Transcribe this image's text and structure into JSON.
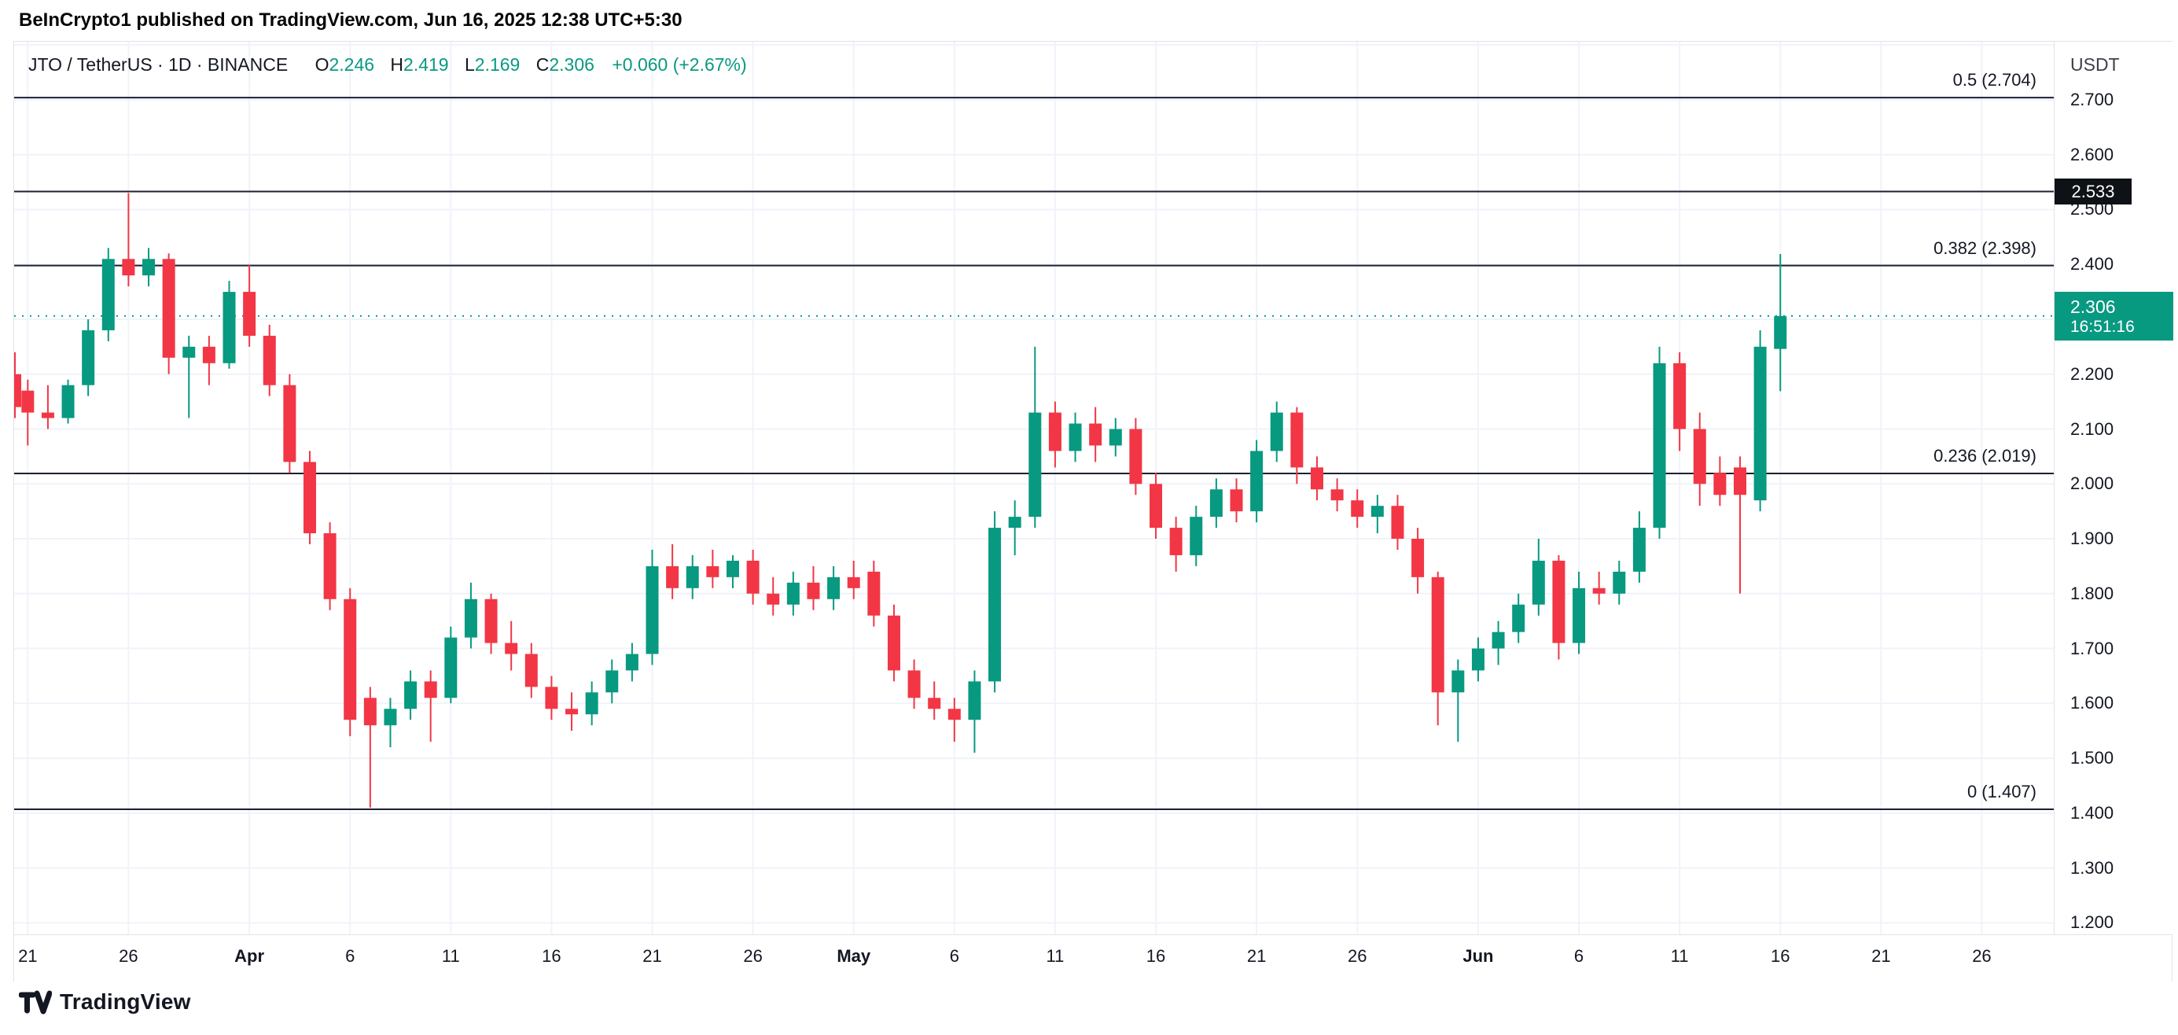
{
  "attribution": "BeInCrypto1 published on TradingView.com, Jun 16, 2025 12:38 UTC+5:30",
  "legend": {
    "title": "JTO / TetherUS · 1D · BINANCE",
    "o_label": "O",
    "o_value": "2.246",
    "h_label": "H",
    "h_value": "2.419",
    "l_label": "L",
    "l_value": "2.169",
    "c_label": "C",
    "c_value": "2.306",
    "change": "+0.060 (+2.67%)"
  },
  "price_axis": {
    "currency_label": "USDT",
    "ticks": [
      {
        "label": "2.700",
        "price": 2.7
      },
      {
        "label": "2.600",
        "price": 2.6
      },
      {
        "label": "2.500",
        "price": 2.5
      },
      {
        "label": "2.400",
        "price": 2.4
      },
      {
        "label": "2.200",
        "price": 2.2
      },
      {
        "label": "2.100",
        "price": 2.1
      },
      {
        "label": "2.000",
        "price": 2.0
      },
      {
        "label": "1.900",
        "price": 1.9
      },
      {
        "label": "1.800",
        "price": 1.8
      },
      {
        "label": "1.700",
        "price": 1.7
      },
      {
        "label": "1.600",
        "price": 1.6
      },
      {
        "label": "1.500",
        "price": 1.5
      },
      {
        "label": "1.400",
        "price": 1.4
      },
      {
        "label": "1.300",
        "price": 1.3
      },
      {
        "label": "1.200",
        "price": 1.2
      }
    ],
    "crossed_tag": {
      "text": "2.533",
      "price": 2.533
    },
    "current_tag": {
      "price_text": "2.306",
      "countdown": "16:51:16",
      "price": 2.306
    }
  },
  "time_axis": {
    "ticks": [
      {
        "label": "21",
        "i": 0,
        "bold": false
      },
      {
        "label": "26",
        "i": 5,
        "bold": false
      },
      {
        "label": "Apr",
        "i": 11,
        "bold": true
      },
      {
        "label": "6",
        "i": 16,
        "bold": false
      },
      {
        "label": "11",
        "i": 21,
        "bold": false
      },
      {
        "label": "16",
        "i": 26,
        "bold": false
      },
      {
        "label": "21",
        "i": 31,
        "bold": false
      },
      {
        "label": "26",
        "i": 36,
        "bold": false
      },
      {
        "label": "May",
        "i": 41,
        "bold": true
      },
      {
        "label": "6",
        "i": 46,
        "bold": false
      },
      {
        "label": "11",
        "i": 51,
        "bold": false
      },
      {
        "label": "16",
        "i": 56,
        "bold": false
      },
      {
        "label": "21",
        "i": 61,
        "bold": false
      },
      {
        "label": "26",
        "i": 66,
        "bold": false
      },
      {
        "label": "Jun",
        "i": 72,
        "bold": true
      },
      {
        "label": "6",
        "i": 77,
        "bold": false
      },
      {
        "label": "11",
        "i": 82,
        "bold": false
      },
      {
        "label": "16",
        "i": 87,
        "bold": false
      },
      {
        "label": "21",
        "i": 92,
        "bold": false
      },
      {
        "label": "26",
        "i": 97,
        "bold": false
      }
    ]
  },
  "fib_levels": [
    {
      "label": "0.5 (2.704)",
      "price": 2.704
    },
    {
      "label": "0.382 (2.398)",
      "price": 2.398
    },
    {
      "label": "0.236 (2.019)",
      "price": 2.019
    },
    {
      "label": "0 (1.407)",
      "price": 1.407
    }
  ],
  "footer": {
    "brand": "TradingView"
  },
  "colors": {
    "up": "#089981",
    "down": "#f23645",
    "grid": "#f0f3fa",
    "fib_line": "#1c2030",
    "axis_text": "#131722"
  },
  "chart_data": {
    "type": "candlestick",
    "symbol": "JTO/USDT",
    "exchange": "BINANCE",
    "interval": "1D",
    "title": "JTO / TetherUS · 1D · BINANCE",
    "y_range": [
      1.179,
      2.806
    ],
    "grid": true,
    "candles": [
      {
        "t": "Mar 20",
        "o": 2.2,
        "h": 2.24,
        "l": 2.12,
        "c": 2.14
      },
      {
        "t": "Mar 21",
        "o": 2.17,
        "h": 2.19,
        "l": 2.07,
        "c": 2.13
      },
      {
        "t": "Mar 22",
        "o": 2.13,
        "h": 2.18,
        "l": 2.1,
        "c": 2.12
      },
      {
        "t": "Mar 23",
        "o": 2.12,
        "h": 2.19,
        "l": 2.11,
        "c": 2.18
      },
      {
        "t": "Mar 24",
        "o": 2.18,
        "h": 2.3,
        "l": 2.16,
        "c": 2.28
      },
      {
        "t": "Mar 25",
        "o": 2.28,
        "h": 2.43,
        "l": 2.26,
        "c": 2.41
      },
      {
        "t": "Mar 26",
        "o": 2.41,
        "h": 2.53,
        "l": 2.36,
        "c": 2.38
      },
      {
        "t": "Mar 27",
        "o": 2.38,
        "h": 2.43,
        "l": 2.36,
        "c": 2.41
      },
      {
        "t": "Mar 28",
        "o": 2.41,
        "h": 2.42,
        "l": 2.2,
        "c": 2.23
      },
      {
        "t": "Mar 29",
        "o": 2.23,
        "h": 2.27,
        "l": 2.12,
        "c": 2.25
      },
      {
        "t": "Mar 30",
        "o": 2.25,
        "h": 2.27,
        "l": 2.18,
        "c": 2.22
      },
      {
        "t": "Mar 31",
        "o": 2.22,
        "h": 2.37,
        "l": 2.21,
        "c": 2.35
      },
      {
        "t": "Apr 1",
        "o": 2.35,
        "h": 2.4,
        "l": 2.25,
        "c": 2.27
      },
      {
        "t": "Apr 2",
        "o": 2.27,
        "h": 2.29,
        "l": 2.16,
        "c": 2.18
      },
      {
        "t": "Apr 3",
        "o": 2.18,
        "h": 2.2,
        "l": 2.02,
        "c": 2.04
      },
      {
        "t": "Apr 4",
        "o": 2.04,
        "h": 2.06,
        "l": 1.89,
        "c": 1.91
      },
      {
        "t": "Apr 5",
        "o": 1.91,
        "h": 1.93,
        "l": 1.77,
        "c": 1.79
      },
      {
        "t": "Apr 6",
        "o": 1.79,
        "h": 1.81,
        "l": 1.54,
        "c": 1.57
      },
      {
        "t": "Apr 7",
        "o": 1.61,
        "h": 1.63,
        "l": 1.41,
        "c": 1.56
      },
      {
        "t": "Apr 8",
        "o": 1.56,
        "h": 1.61,
        "l": 1.52,
        "c": 1.59
      },
      {
        "t": "Apr 9",
        "o": 1.59,
        "h": 1.66,
        "l": 1.57,
        "c": 1.64
      },
      {
        "t": "Apr 10",
        "o": 1.64,
        "h": 1.66,
        "l": 1.53,
        "c": 1.61
      },
      {
        "t": "Apr 11",
        "o": 1.61,
        "h": 1.74,
        "l": 1.6,
        "c": 1.72
      },
      {
        "t": "Apr 12",
        "o": 1.72,
        "h": 1.82,
        "l": 1.7,
        "c": 1.79
      },
      {
        "t": "Apr 13",
        "o": 1.79,
        "h": 1.8,
        "l": 1.69,
        "c": 1.71
      },
      {
        "t": "Apr 14",
        "o": 1.71,
        "h": 1.75,
        "l": 1.66,
        "c": 1.69
      },
      {
        "t": "Apr 15",
        "o": 1.69,
        "h": 1.71,
        "l": 1.61,
        "c": 1.63
      },
      {
        "t": "Apr 16",
        "o": 1.63,
        "h": 1.65,
        "l": 1.57,
        "c": 1.59
      },
      {
        "t": "Apr 17",
        "o": 1.59,
        "h": 1.62,
        "l": 1.55,
        "c": 1.58
      },
      {
        "t": "Apr 18",
        "o": 1.58,
        "h": 1.64,
        "l": 1.56,
        "c": 1.62
      },
      {
        "t": "Apr 19",
        "o": 1.62,
        "h": 1.68,
        "l": 1.6,
        "c": 1.66
      },
      {
        "t": "Apr 20",
        "o": 1.66,
        "h": 1.71,
        "l": 1.64,
        "c": 1.69
      },
      {
        "t": "Apr 21",
        "o": 1.69,
        "h": 1.88,
        "l": 1.67,
        "c": 1.85
      },
      {
        "t": "Apr 22",
        "o": 1.85,
        "h": 1.89,
        "l": 1.79,
        "c": 1.81
      },
      {
        "t": "Apr 23",
        "o": 1.81,
        "h": 1.87,
        "l": 1.79,
        "c": 1.85
      },
      {
        "t": "Apr 24",
        "o": 1.85,
        "h": 1.88,
        "l": 1.81,
        "c": 1.83
      },
      {
        "t": "Apr 25",
        "o": 1.83,
        "h": 1.87,
        "l": 1.81,
        "c": 1.86
      },
      {
        "t": "Apr 26",
        "o": 1.86,
        "h": 1.88,
        "l": 1.78,
        "c": 1.8
      },
      {
        "t": "Apr 27",
        "o": 1.8,
        "h": 1.83,
        "l": 1.76,
        "c": 1.78
      },
      {
        "t": "Apr 28",
        "o": 1.78,
        "h": 1.84,
        "l": 1.76,
        "c": 1.82
      },
      {
        "t": "Apr 29",
        "o": 1.82,
        "h": 1.85,
        "l": 1.77,
        "c": 1.79
      },
      {
        "t": "Apr 30",
        "o": 1.79,
        "h": 1.85,
        "l": 1.77,
        "c": 1.83
      },
      {
        "t": "May 1",
        "o": 1.83,
        "h": 1.86,
        "l": 1.79,
        "c": 1.81
      },
      {
        "t": "May 2",
        "o": 1.84,
        "h": 1.86,
        "l": 1.74,
        "c": 1.76
      },
      {
        "t": "May 3",
        "o": 1.76,
        "h": 1.78,
        "l": 1.64,
        "c": 1.66
      },
      {
        "t": "May 4",
        "o": 1.66,
        "h": 1.68,
        "l": 1.59,
        "c": 1.61
      },
      {
        "t": "May 5",
        "o": 1.61,
        "h": 1.64,
        "l": 1.57,
        "c": 1.59
      },
      {
        "t": "May 6",
        "o": 1.59,
        "h": 1.61,
        "l": 1.53,
        "c": 1.57
      },
      {
        "t": "May 7",
        "o": 1.57,
        "h": 1.66,
        "l": 1.51,
        "c": 1.64
      },
      {
        "t": "May 8",
        "o": 1.64,
        "h": 1.95,
        "l": 1.62,
        "c": 1.92
      },
      {
        "t": "May 9",
        "o": 1.92,
        "h": 1.97,
        "l": 1.87,
        "c": 1.94
      },
      {
        "t": "May 10",
        "o": 1.94,
        "h": 2.25,
        "l": 1.92,
        "c": 2.13
      },
      {
        "t": "May 11",
        "o": 2.13,
        "h": 2.15,
        "l": 2.03,
        "c": 2.06
      },
      {
        "t": "May 12",
        "o": 2.06,
        "h": 2.13,
        "l": 2.04,
        "c": 2.11
      },
      {
        "t": "May 13",
        "o": 2.11,
        "h": 2.14,
        "l": 2.04,
        "c": 2.07
      },
      {
        "t": "May 14",
        "o": 2.07,
        "h": 2.12,
        "l": 2.05,
        "c": 2.1
      },
      {
        "t": "May 15",
        "o": 2.1,
        "h": 2.12,
        "l": 1.98,
        "c": 2.0
      },
      {
        "t": "May 16",
        "o": 2.0,
        "h": 2.02,
        "l": 1.9,
        "c": 1.92
      },
      {
        "t": "May 17",
        "o": 1.92,
        "h": 1.94,
        "l": 1.84,
        "c": 1.87
      },
      {
        "t": "May 18",
        "o": 1.87,
        "h": 1.96,
        "l": 1.85,
        "c": 1.94
      },
      {
        "t": "May 19",
        "o": 1.94,
        "h": 2.01,
        "l": 1.92,
        "c": 1.99
      },
      {
        "t": "May 20",
        "o": 1.99,
        "h": 2.01,
        "l": 1.93,
        "c": 1.95
      },
      {
        "t": "May 21",
        "o": 1.95,
        "h": 2.08,
        "l": 1.93,
        "c": 2.06
      },
      {
        "t": "May 22",
        "o": 2.06,
        "h": 2.15,
        "l": 2.04,
        "c": 2.13
      },
      {
        "t": "May 23",
        "o": 2.13,
        "h": 2.14,
        "l": 2.0,
        "c": 2.03
      },
      {
        "t": "May 24",
        "o": 2.03,
        "h": 2.05,
        "l": 1.97,
        "c": 1.99
      },
      {
        "t": "May 25",
        "o": 1.99,
        "h": 2.01,
        "l": 1.95,
        "c": 1.97
      },
      {
        "t": "May 26",
        "o": 1.97,
        "h": 1.99,
        "l": 1.92,
        "c": 1.94
      },
      {
        "t": "May 27",
        "o": 1.94,
        "h": 1.98,
        "l": 1.91,
        "c": 1.96
      },
      {
        "t": "May 28",
        "o": 1.96,
        "h": 1.98,
        "l": 1.88,
        "c": 1.9
      },
      {
        "t": "May 29",
        "o": 1.9,
        "h": 1.92,
        "l": 1.8,
        "c": 1.83
      },
      {
        "t": "May 30",
        "o": 1.83,
        "h": 1.84,
        "l": 1.56,
        "c": 1.62
      },
      {
        "t": "May 31",
        "o": 1.62,
        "h": 1.68,
        "l": 1.53,
        "c": 1.66
      },
      {
        "t": "Jun 1",
        "o": 1.66,
        "h": 1.72,
        "l": 1.64,
        "c": 1.7
      },
      {
        "t": "Jun 2",
        "o": 1.7,
        "h": 1.75,
        "l": 1.67,
        "c": 1.73
      },
      {
        "t": "Jun 3",
        "o": 1.73,
        "h": 1.8,
        "l": 1.71,
        "c": 1.78
      },
      {
        "t": "Jun 4",
        "o": 1.78,
        "h": 1.9,
        "l": 1.76,
        "c": 1.86
      },
      {
        "t": "Jun 5",
        "o": 1.86,
        "h": 1.87,
        "l": 1.68,
        "c": 1.71
      },
      {
        "t": "Jun 6",
        "o": 1.71,
        "h": 1.84,
        "l": 1.69,
        "c": 1.81
      },
      {
        "t": "Jun 7",
        "o": 1.81,
        "h": 1.84,
        "l": 1.78,
        "c": 1.8
      },
      {
        "t": "Jun 8",
        "o": 1.8,
        "h": 1.86,
        "l": 1.78,
        "c": 1.84
      },
      {
        "t": "Jun 9",
        "o": 1.84,
        "h": 1.95,
        "l": 1.82,
        "c": 1.92
      },
      {
        "t": "Jun 10",
        "o": 1.92,
        "h": 2.25,
        "l": 1.9,
        "c": 2.22
      },
      {
        "t": "Jun 11",
        "o": 2.22,
        "h": 2.24,
        "l": 2.06,
        "c": 2.1
      },
      {
        "t": "Jun 12",
        "o": 2.1,
        "h": 2.13,
        "l": 1.96,
        "c": 2.0
      },
      {
        "t": "Jun 13",
        "o": 2.02,
        "h": 2.05,
        "l": 1.96,
        "c": 1.98
      },
      {
        "t": "Jun 14",
        "o": 2.03,
        "h": 2.05,
        "l": 1.8,
        "c": 1.98
      },
      {
        "t": "Jun 15",
        "o": 1.97,
        "h": 2.28,
        "l": 1.95,
        "c": 2.25
      },
      {
        "t": "Jun 16",
        "o": 2.246,
        "h": 2.419,
        "l": 2.169,
        "c": 2.306
      }
    ]
  }
}
